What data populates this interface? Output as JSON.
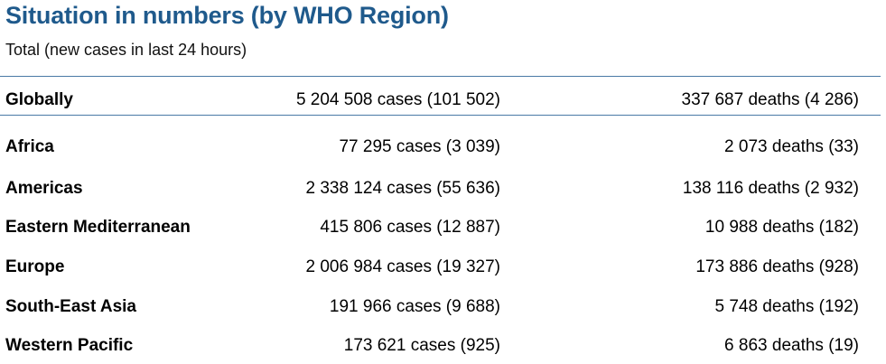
{
  "header": {
    "title": "Situation in numbers (by WHO Region)",
    "subtitle": "Total (new cases in last 24 hours)"
  },
  "global": {
    "region": "Globally",
    "cases": "5 204 508 cases (101 502)",
    "deaths": "337 687 deaths (4 286)"
  },
  "regions": [
    {
      "region": "Africa",
      "cases": "77 295 cases (3 039)",
      "deaths": "2 073 deaths (33)"
    },
    {
      "region": "Americas",
      "cases": "2 338 124 cases (55 636)",
      "deaths": "138 116 deaths (2 932)"
    },
    {
      "region": "Eastern Mediterranean",
      "cases": "415 806 cases (12 887)",
      "deaths": "10 988 deaths (182)"
    },
    {
      "region": "Europe",
      "cases": "2 006 984 cases (19 327)",
      "deaths": "173 886 deaths (928)"
    },
    {
      "region": "South-East Asia",
      "cases": "191 966 cases (9 688)",
      "deaths": "5 748 deaths (192)"
    },
    {
      "region": "Western Pacific",
      "cases": "173 621 cases (925)",
      "deaths": "6 863 deaths (19)"
    }
  ],
  "colors": {
    "title": "#1f5a8c",
    "rule": "#4a7aa6"
  }
}
